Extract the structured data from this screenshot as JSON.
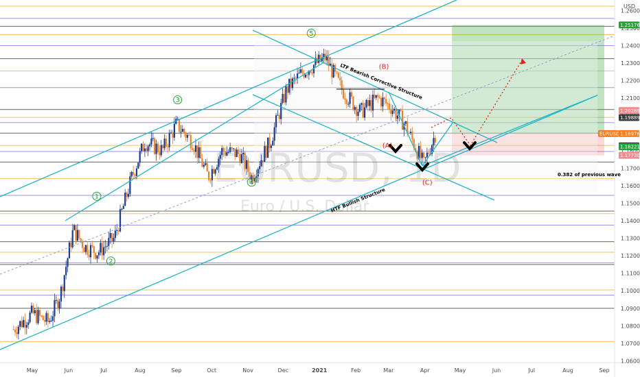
{
  "currency": "USD",
  "watermark": {
    "symbol": "EURUSD, 1D",
    "name": "Euro / U.S. Dollar"
  },
  "chart_data": {
    "type": "candlestick",
    "symbol": "EURUSD",
    "timeframe": "1D",
    "ylim": [
      1.059,
      1.266
    ],
    "x_ticks": [
      "May",
      "Jun",
      "Jul",
      "Aug",
      "Sep",
      "Oct",
      "Nov",
      "Dec",
      "2021",
      "Feb",
      "Mar",
      "Apr",
      "May",
      "Jun",
      "Jul",
      "Aug",
      "Sep"
    ],
    "y_ticks": [
      1.06,
      1.07,
      1.08,
      1.09,
      1.1,
      1.11,
      1.12,
      1.13,
      1.14,
      1.15,
      1.16,
      1.17,
      1.18,
      1.19,
      1.2,
      1.21,
      1.22,
      1.23,
      1.24,
      1.25,
      1.26
    ],
    "price_tags": [
      {
        "label": "1.25176",
        "value": 1.25176,
        "color": "#22a33a"
      },
      {
        "label": "1.20289",
        "value": 1.20289,
        "color": "#f28b8b"
      },
      {
        "label": "1.19889",
        "value": 1.19889,
        "color": "#3b3b3b"
      },
      {
        "label": "EURUSD",
        "value": 1.18976,
        "color": "#f57f20"
      },
      {
        "label": "1.18976",
        "value": 1.18976,
        "color": "#f57f20"
      },
      {
        "label": "1.18275",
        "value": 1.18275,
        "color": "#3b3b3b"
      },
      {
        "label": "1.18221",
        "value": 1.18221,
        "color": "#22a33a"
      },
      {
        "label": "1.17730",
        "value": 1.1773,
        "color": "#f28b8b"
      }
    ],
    "candles_monthly_path": [
      [
        "2020-04-15",
        1.078
      ],
      [
        "2020-05-01",
        1.087
      ],
      [
        "2020-05-15",
        1.082
      ],
      [
        "2020-05-25",
        1.098
      ],
      [
        "2020-06-05",
        1.135
      ],
      [
        "2020-06-15",
        1.125
      ],
      [
        "2020-06-26",
        1.122
      ],
      [
        "2020-07-10",
        1.13
      ],
      [
        "2020-07-25",
        1.165
      ],
      [
        "2020-08-05",
        1.185
      ],
      [
        "2020-08-20",
        1.18
      ],
      [
        "2020-09-01",
        1.195
      ],
      [
        "2020-09-15",
        1.185
      ],
      [
        "2020-09-28",
        1.165
      ],
      [
        "2020-10-10",
        1.18
      ],
      [
        "2020-10-25",
        1.178
      ],
      [
        "2020-11-04",
        1.165
      ],
      [
        "2020-11-20",
        1.185
      ],
      [
        "2020-12-04",
        1.215
      ],
      [
        "2020-12-18",
        1.225
      ],
      [
        "2021-01-06",
        1.233
      ],
      [
        "2021-01-20",
        1.215
      ],
      [
        "2021-02-05",
        1.202
      ],
      [
        "2021-02-20",
        1.21
      ],
      [
        "2021-03-03",
        1.205
      ],
      [
        "2021-03-15",
        1.195
      ],
      [
        "2021-03-31",
        1.172
      ],
      [
        "2021-04-10",
        1.19
      ]
    ],
    "wave_labels": [
      {
        "label": "1",
        "date": "2020-06-25",
        "price": 1.154,
        "color": "#22a33a"
      },
      {
        "label": "2",
        "date": "2020-07-07",
        "price": 1.117,
        "color": "#22a33a"
      },
      {
        "label": "3",
        "date": "2020-09-02",
        "price": 1.209,
        "color": "#22a33a"
      },
      {
        "label": "4",
        "date": "2020-11-04",
        "price": 1.162,
        "color": "#22a33a"
      },
      {
        "label": "5",
        "date": "2020-12-25",
        "price": 1.247,
        "color": "#22a33a"
      },
      {
        "label": "(B)",
        "date": "2021-02-25",
        "price": 1.228,
        "color": "#e0241b"
      },
      {
        "label": "(A)",
        "date": "2021-02-28",
        "price": 1.183,
        "color": "#e0241b"
      },
      {
        "label": "(C)",
        "date": "2021-04-03",
        "price": 1.162,
        "color": "#e0241b"
      }
    ],
    "annotations": [
      "LTF Bearish Corrective Structure",
      "HTF Bullish Structure",
      "0.382 of previous wave"
    ],
    "horizontal_levels": [
      1.2625,
      1.2555,
      1.251,
      1.2462,
      1.24,
      1.2325,
      1.2255,
      1.216,
      1.2035,
      1.199,
      1.196,
      1.19,
      1.183,
      1.1795,
      1.1735,
      1.164,
      1.1545,
      1.1455,
      1.144,
      1.1375,
      1.128,
      1.122,
      1.116,
      1.115,
      1.1005,
      1.0975,
      1.09,
      1.071
    ],
    "trade_box": {
      "entry": 1.18976,
      "target": 1.25176,
      "stop": 1.1773,
      "start": "2021-04-24",
      "end": "2021-09-01"
    }
  }
}
